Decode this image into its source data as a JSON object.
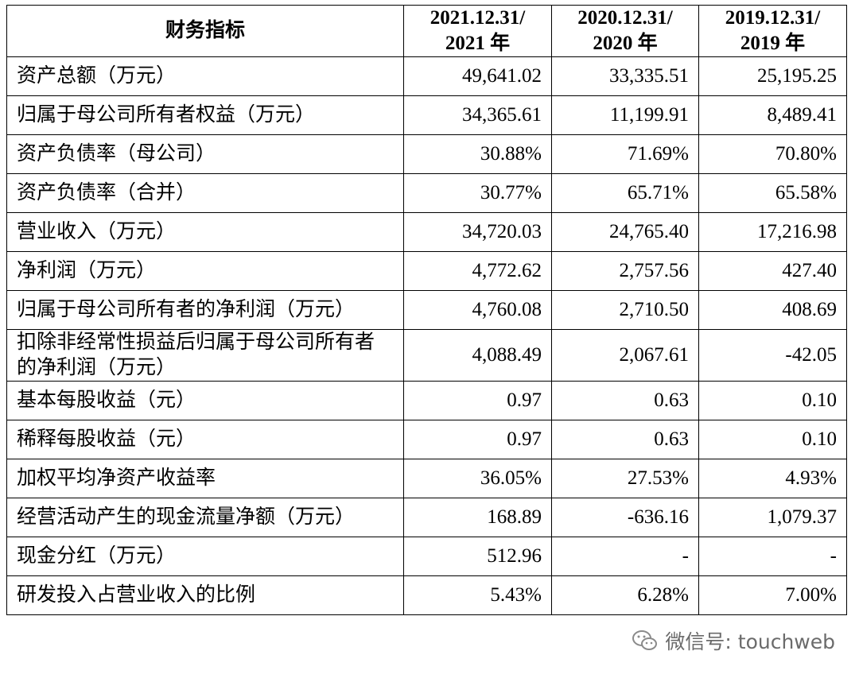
{
  "table": {
    "header": [
      [
        "财务指标"
      ],
      [
        "2021.12.31/",
        "2021 年"
      ],
      [
        "2020.12.31/",
        "2020 年"
      ],
      [
        "2019.12.31/",
        "2019 年"
      ]
    ],
    "rows": [
      [
        "资产总额（万元）",
        "49,641.02",
        "33,335.51",
        "25,195.25"
      ],
      [
        "归属于母公司所有者权益（万元）",
        "34,365.61",
        "11,199.91",
        "8,489.41"
      ],
      [
        "资产负债率（母公司）",
        "30.88%",
        "71.69%",
        "70.80%"
      ],
      [
        "资产负债率（合并）",
        "30.77%",
        "65.71%",
        "65.58%"
      ],
      [
        "营业收入（万元）",
        "34,720.03",
        "24,765.40",
        "17,216.98"
      ],
      [
        "净利润（万元）",
        "4,772.62",
        "2,757.56",
        "427.40"
      ],
      [
        "归属于母公司所有者的净利润（万元）",
        "4,760.08",
        "2,710.50",
        "408.69"
      ],
      [
        "扣除非经常性损益后归属于母公司所有者的净利润（万元）",
        "4,088.49",
        "2,067.61",
        "-42.05"
      ],
      [
        "基本每股收益（元）",
        "0.97",
        "0.63",
        "0.10"
      ],
      [
        "稀释每股收益（元）",
        "0.97",
        "0.63",
        "0.10"
      ],
      [
        "加权平均净资产收益率",
        "36.05%",
        "27.53%",
        "4.93%"
      ],
      [
        "经营活动产生的现金流量净额（万元）",
        "168.89",
        "-636.16",
        "1,079.37"
      ],
      [
        "现金分红（万元）",
        "512.96",
        "-",
        "-"
      ],
      [
        "研发投入占营业收入的比例",
        "5.43%",
        "6.28%",
        "7.00%"
      ]
    ]
  },
  "watermark": "微信号: touchweb"
}
